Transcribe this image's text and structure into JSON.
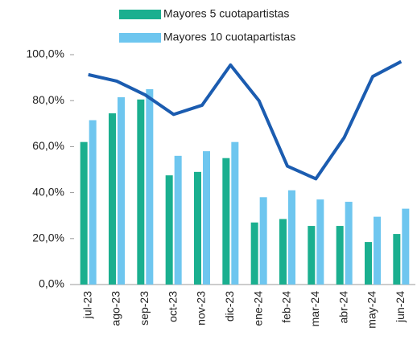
{
  "chart_data": {
    "type": "bar",
    "categories": [
      "jul-23",
      "ago-23",
      "sep-23",
      "oct-23",
      "nov-23",
      "dic-23",
      "ene-24",
      "feb-24",
      "mar-24",
      "abr-24",
      "may-24",
      "jun-24"
    ],
    "series": [
      {
        "name": "Mayores 5 cuotapartistas",
        "color": "#1aaf8f",
        "type": "bar",
        "values": [
          62,
          74.5,
          80.5,
          47.5,
          49,
          55,
          27,
          28.5,
          25.5,
          25.5,
          18.5,
          22
        ]
      },
      {
        "name": "Mayores 10 cuotapartistas",
        "color": "#6ec6ef",
        "type": "bar",
        "values": [
          71.5,
          81.5,
          85,
          56,
          58,
          62,
          38,
          41,
          37,
          36,
          29.5,
          33
        ]
      },
      {
        "color": "#1b5cb0",
        "type": "line",
        "values": [
          91.3,
          88.5,
          82.5,
          74,
          78,
          95.5,
          80,
          51.5,
          46,
          64,
          90.5,
          97
        ]
      }
    ],
    "ylim": [
      0,
      100
    ],
    "yticks": [
      {
        "value": 0,
        "label": "0,0%"
      },
      {
        "value": 20,
        "label": "20,0%"
      },
      {
        "value": 40,
        "label": "40,0%"
      },
      {
        "value": 60,
        "label": "60,0%"
      },
      {
        "value": 80,
        "label": "80,0%"
      },
      {
        "value": 100,
        "label": "100,0%"
      }
    ]
  }
}
